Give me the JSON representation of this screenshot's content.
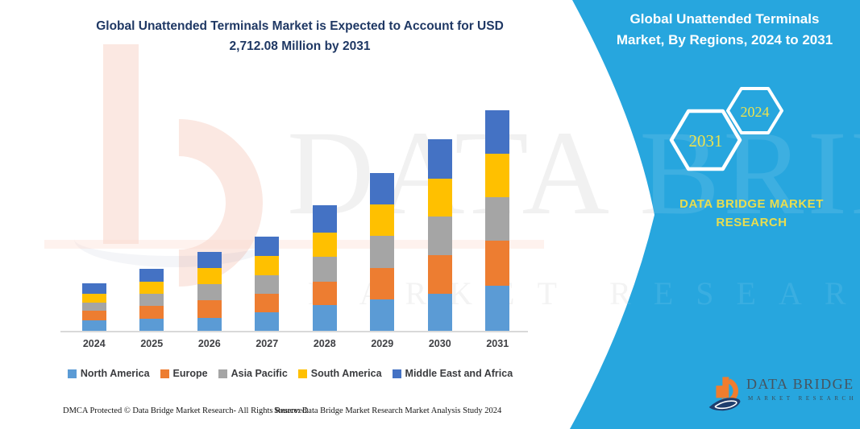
{
  "header": {
    "title_line1": "Global Unattended Terminals Market is Expected to Account for USD",
    "title_line2": "2,712.08 Million by 2031",
    "title_color": "#1F3864"
  },
  "side_panel": {
    "title": "Global Unattended Terminals Market, By Regions, 2024 to 2031",
    "hexagon_large_label": "2031",
    "hexagon_small_label": "2024",
    "brand_text": "DATA BRIDGE MARKET RESEARCH",
    "panel_color": "#27A6DE",
    "year_text_color": "#EDE24E"
  },
  "chart_data": {
    "type": "bar",
    "subtype": "stacked",
    "title": "Global Unattended Terminals Market is Expected to Account for USD 2,712.08 Million by 2031",
    "unit": "USD Million",
    "categories": [
      "2024",
      "2025",
      "2026",
      "2027",
      "2028",
      "2029",
      "2030",
      "2031"
    ],
    "series": [
      {
        "name": "North America",
        "color": "#5B9BD5",
        "values": [
          131,
          148,
          158,
          224,
          313,
          389,
          455,
          554
        ]
      },
      {
        "name": "Europe",
        "color": "#ED7D31",
        "values": [
          116,
          158,
          218,
          237,
          290,
          380,
          478,
          551
        ]
      },
      {
        "name": "Asia Pacific",
        "color": "#A5A5A5",
        "values": [
          99,
          148,
          198,
          224,
          304,
          395,
          469,
          537
        ]
      },
      {
        "name": "South America",
        "color": "#FFC000",
        "values": [
          109,
          148,
          198,
          237,
          297,
          386,
          471,
          534
        ]
      },
      {
        "name": "Middle East and Africa",
        "color": "#4472C4",
        "values": [
          129,
          165,
          198,
          240,
          346,
          389,
          479,
          536.08
        ]
      }
    ],
    "highlight_total": {
      "category": "2031",
      "total": 2712.08
    },
    "legend_position": "bottom",
    "y_axis_visible": false,
    "gridlines": false
  },
  "footer": {
    "left": "DMCA Protected © Data Bridge Market Research-  All Rights Reserved.",
    "source": "Source: Data Bridge Market Research  Market Analysis Study 2024"
  },
  "logo": {
    "name": "DATA BRIDGE",
    "tagline": "MARKET RESEARCH"
  },
  "watermark": {
    "text_main": "DATA BRIDGE",
    "text_sub": "MARKET RESEARCH"
  }
}
